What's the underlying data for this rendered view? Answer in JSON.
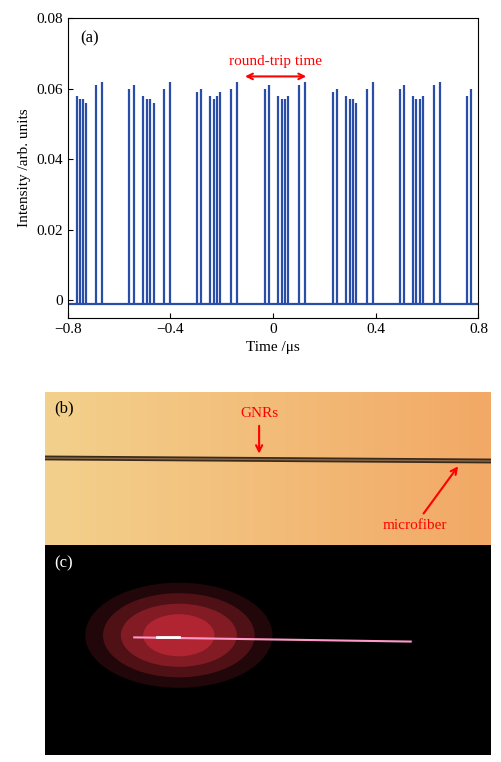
{
  "chart_data": {
    "type": "stem",
    "label": "(a)",
    "x_label": "Time /μs",
    "y_label": "Intensity /arb. units",
    "color": "#2a4ea8",
    "baseline": -0.001,
    "x": [
      -0.765,
      -0.752,
      -0.74,
      -0.727,
      -0.69,
      -0.665,
      -0.505,
      -0.49,
      -0.478,
      -0.465,
      -0.425,
      -0.4,
      -0.245,
      -0.23,
      -0.218,
      -0.205,
      -0.165,
      -0.14,
      0.02,
      0.033,
      0.047,
      0.06,
      0.1,
      0.125,
      0.285,
      0.3,
      0.312,
      0.325,
      0.365,
      0.39,
      0.545,
      0.558,
      0.572,
      0.585,
      0.625,
      0.65,
      -0.56,
      -0.54,
      -0.295,
      -0.28,
      -0.03,
      -0.015,
      0.235,
      0.25,
      0.495,
      0.51,
      0.755,
      0.77
    ],
    "values": [
      0.058,
      0.057,
      0.057,
      0.056,
      0.061,
      0.062,
      0.058,
      0.057,
      0.057,
      0.056,
      0.06,
      0.062,
      0.058,
      0.057,
      0.058,
      0.059,
      0.06,
      0.062,
      0.058,
      0.057,
      0.057,
      0.058,
      0.061,
      0.062,
      0.058,
      0.057,
      0.057,
      0.056,
      0.06,
      0.062,
      0.058,
      0.057,
      0.057,
      0.058,
      0.061,
      0.062,
      0.06,
      0.061,
      0.059,
      0.06,
      0.06,
      0.061,
      0.059,
      0.06,
      0.06,
      0.061,
      0.058,
      0.06
    ],
    "xlim": [
      -0.8,
      0.8
    ],
    "xticks": [
      {
        "value": -0.8,
        "label": "−0.8"
      },
      {
        "value": -0.4,
        "label": "−0.4"
      },
      0,
      0.4,
      0.8
    ],
    "ylim": [
      -0.005,
      0.08
    ],
    "yticks": [
      0,
      0.02,
      0.04,
      0.06,
      0.08
    ],
    "annotation": {
      "text": "round-trip time",
      "x": [
        -0.12,
        0.14
      ],
      "y": 0.0635
    }
  },
  "photos": [
    {
      "label": "(b)",
      "annotations": [
        "GNRs",
        "microfiber"
      ]
    },
    {
      "label": "(c)"
    }
  ]
}
